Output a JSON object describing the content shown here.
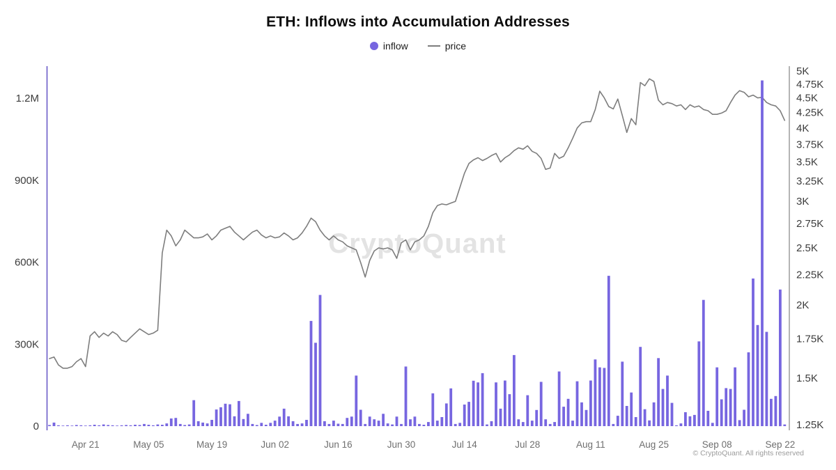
{
  "title": "ETH: Inflows into Accumulation Addresses",
  "legend": {
    "inflow_label": "inflow",
    "price_label": "price"
  },
  "watermark": "CryptoQuant",
  "footer": "© CryptoQuant. All rights reserved",
  "colors": {
    "inflow": "#7766e0",
    "price": "#7d7d7d",
    "left_axis": "#6a5ac8",
    "right_axis": "#777777"
  },
  "chart_data": {
    "type": "bar+line",
    "title": "ETH: Inflows into Accumulation Addresses",
    "x": [
      "Apr 13",
      "Apr 14",
      "Apr 15",
      "Apr 16",
      "Apr 17",
      "Apr 18",
      "Apr 19",
      "Apr 20",
      "Apr 21",
      "Apr 22",
      "Apr 23",
      "Apr 24",
      "Apr 25",
      "Apr 26",
      "Apr 27",
      "Apr 28",
      "Apr 29",
      "Apr 30",
      "May 01",
      "May 02",
      "May 03",
      "May 04",
      "May 05",
      "May 06",
      "May 07",
      "May 08",
      "May 09",
      "May 10",
      "May 11",
      "May 12",
      "May 13",
      "May 14",
      "May 15",
      "May 16",
      "May 17",
      "May 18",
      "May 19",
      "May 20",
      "May 21",
      "May 22",
      "May 23",
      "May 24",
      "May 25",
      "May 26",
      "May 27",
      "May 28",
      "May 29",
      "May 30",
      "May 31",
      "Jun 01",
      "Jun 02",
      "Jun 03",
      "Jun 04",
      "Jun 05",
      "Jun 06",
      "Jun 07",
      "Jun 08",
      "Jun 09",
      "Jun 10",
      "Jun 11",
      "Jun 12",
      "Jun 13",
      "Jun 14",
      "Jun 15",
      "Jun 16",
      "Jun 17",
      "Jun 18",
      "Jun 19",
      "Jun 20",
      "Jun 21",
      "Jun 22",
      "Jun 23",
      "Jun 24",
      "Jun 25",
      "Jun 26",
      "Jun 27",
      "Jun 28",
      "Jun 29",
      "Jun 30",
      "Jul 01",
      "Jul 02",
      "Jul 03",
      "Jul 04",
      "Jul 05",
      "Jul 06",
      "Jul 07",
      "Jul 08",
      "Jul 09",
      "Jul 10",
      "Jul 11",
      "Jul 12",
      "Jul 13",
      "Jul 14",
      "Jul 15",
      "Jul 16",
      "Jul 17",
      "Jul 18",
      "Jul 19",
      "Jul 20",
      "Jul 21",
      "Jul 22",
      "Jul 23",
      "Jul 24",
      "Jul 25",
      "Jul 26",
      "Jul 27",
      "Jul 28",
      "Jul 29",
      "Jul 30",
      "Jul 31",
      "Aug 01",
      "Aug 02",
      "Aug 03",
      "Aug 04",
      "Aug 05",
      "Aug 06",
      "Aug 07",
      "Aug 08",
      "Aug 09",
      "Aug 10",
      "Aug 11",
      "Aug 12",
      "Aug 13",
      "Aug 14",
      "Aug 15",
      "Aug 16",
      "Aug 17",
      "Aug 18",
      "Aug 19",
      "Aug 20",
      "Aug 21",
      "Aug 22",
      "Aug 23",
      "Aug 24",
      "Aug 25",
      "Aug 26",
      "Aug 27",
      "Aug 28",
      "Aug 29",
      "Aug 30",
      "Aug 31",
      "Sep 01",
      "Sep 02",
      "Sep 03",
      "Sep 04",
      "Sep 05",
      "Sep 06",
      "Sep 07",
      "Sep 08",
      "Sep 09",
      "Sep 10",
      "Sep 11",
      "Sep 12",
      "Sep 13",
      "Sep 14",
      "Sep 15",
      "Sep 16",
      "Sep 17",
      "Sep 18",
      "Sep 19",
      "Sep 20",
      "Sep 21",
      "Sep 22",
      "Sep 23"
    ],
    "series": [
      {
        "name": "inflow",
        "type": "bar",
        "axis": "left",
        "unit": "K ETH",
        "values_k": [
          4,
          13,
          3,
          2,
          3,
          2,
          4,
          3,
          2,
          3,
          5,
          3,
          6,
          4,
          3,
          2,
          3,
          4,
          3,
          5,
          4,
          8,
          5,
          3,
          6,
          5,
          10,
          28,
          30,
          8,
          4,
          6,
          95,
          18,
          13,
          10,
          23,
          61,
          69,
          82,
          80,
          36,
          92,
          26,
          45,
          8,
          4,
          12,
          5,
          12,
          20,
          35,
          64,
          36,
          18,
          8,
          10,
          23,
          385,
          305,
          480,
          18,
          8,
          20,
          9,
          8,
          30,
          35,
          185,
          60,
          8,
          35,
          25,
          20,
          45,
          10,
          6,
          35,
          8,
          218,
          25,
          35,
          8,
          5,
          15,
          120,
          20,
          33,
          83,
          138,
          8,
          12,
          79,
          89,
          166,
          160,
          194,
          6,
          18,
          160,
          64,
          167,
          117,
          260,
          25,
          15,
          113,
          20,
          59,
          162,
          25,
          8,
          15,
          200,
          71,
          100,
          20,
          164,
          87,
          59,
          167,
          244,
          215,
          213,
          550,
          8,
          38,
          236,
          74,
          123,
          33,
          290,
          62,
          21,
          87,
          249,
          136,
          185,
          85,
          3,
          10,
          51,
          36,
          41,
          310,
          462,
          56,
          12,
          215,
          98,
          139,
          136,
          215,
          22,
          60,
          270,
          540,
          370,
          1265,
          345,
          100,
          110,
          500,
          6
        ]
      },
      {
        "name": "price",
        "type": "line",
        "axis": "right",
        "unit": "K USD",
        "values_k": [
          1.62,
          1.63,
          1.58,
          1.56,
          1.56,
          1.57,
          1.6,
          1.62,
          1.57,
          1.77,
          1.8,
          1.76,
          1.79,
          1.77,
          1.8,
          1.78,
          1.74,
          1.73,
          1.76,
          1.79,
          1.82,
          1.8,
          1.78,
          1.79,
          1.81,
          2.45,
          2.68,
          2.62,
          2.52,
          2.58,
          2.68,
          2.64,
          2.6,
          2.6,
          2.61,
          2.64,
          2.58,
          2.62,
          2.68,
          2.7,
          2.72,
          2.66,
          2.62,
          2.58,
          2.62,
          2.66,
          2.68,
          2.63,
          2.6,
          2.62,
          2.6,
          2.61,
          2.65,
          2.62,
          2.58,
          2.6,
          2.65,
          2.72,
          2.81,
          2.77,
          2.68,
          2.62,
          2.58,
          2.62,
          2.58,
          2.56,
          2.52,
          2.5,
          2.48,
          2.36,
          2.23,
          2.38,
          2.47,
          2.5,
          2.49,
          2.5,
          2.48,
          2.4,
          2.55,
          2.58,
          2.48,
          2.56,
          2.58,
          2.62,
          2.72,
          2.87,
          2.95,
          2.97,
          2.96,
          2.98,
          3.0,
          3.17,
          3.35,
          3.48,
          3.53,
          3.56,
          3.52,
          3.55,
          3.59,
          3.62,
          3.5,
          3.56,
          3.6,
          3.66,
          3.7,
          3.68,
          3.73,
          3.65,
          3.62,
          3.55,
          3.4,
          3.42,
          3.62,
          3.55,
          3.58,
          3.7,
          3.84,
          4.0,
          4.08,
          4.1,
          4.1,
          4.3,
          4.62,
          4.5,
          4.35,
          4.31,
          4.48,
          4.2,
          3.93,
          4.15,
          4.05,
          4.78,
          4.72,
          4.85,
          4.8,
          4.46,
          4.38,
          4.42,
          4.4,
          4.36,
          4.38,
          4.3,
          4.38,
          4.34,
          4.36,
          4.3,
          4.28,
          4.22,
          4.22,
          4.24,
          4.28,
          4.42,
          4.55,
          4.63,
          4.6,
          4.52,
          4.55,
          4.5,
          4.51,
          4.42,
          4.38,
          4.36,
          4.28,
          4.12
        ]
      }
    ],
    "left_axis": {
      "scale": "linear",
      "ticks": [
        "0",
        "300K",
        "600K",
        "900K",
        "1.2M"
      ],
      "tick_values_k": [
        0,
        300,
        600,
        900,
        1200
      ],
      "range_k": [
        0,
        1320
      ]
    },
    "right_axis": {
      "scale": "log",
      "ticks": [
        "1.25K",
        "1.5K",
        "1.75K",
        "2K",
        "2.25K",
        "2.5K",
        "2.75K",
        "3K",
        "3.25K",
        "3.5K",
        "3.75K",
        "4K",
        "4.25K",
        "4.5K",
        "4.75K",
        "5K"
      ],
      "tick_values_k": [
        1.25,
        1.5,
        1.75,
        2,
        2.25,
        2.5,
        2.75,
        3,
        3.25,
        3.5,
        3.75,
        4,
        4.25,
        4.5,
        4.75,
        5
      ],
      "range_k": [
        1.25,
        5
      ]
    },
    "x_ticks": {
      "start_index": 8,
      "every": 14,
      "labels": [
        "Apr 21",
        "May 05",
        "May 19",
        "Jun 02",
        "Jun 16",
        "Jun 30",
        "Jul 14",
        "Jul 28",
        "Aug 11",
        "Aug 25",
        "Sep 08",
        "Sep 22"
      ]
    },
    "grid": false,
    "legend_position": "top-center"
  }
}
